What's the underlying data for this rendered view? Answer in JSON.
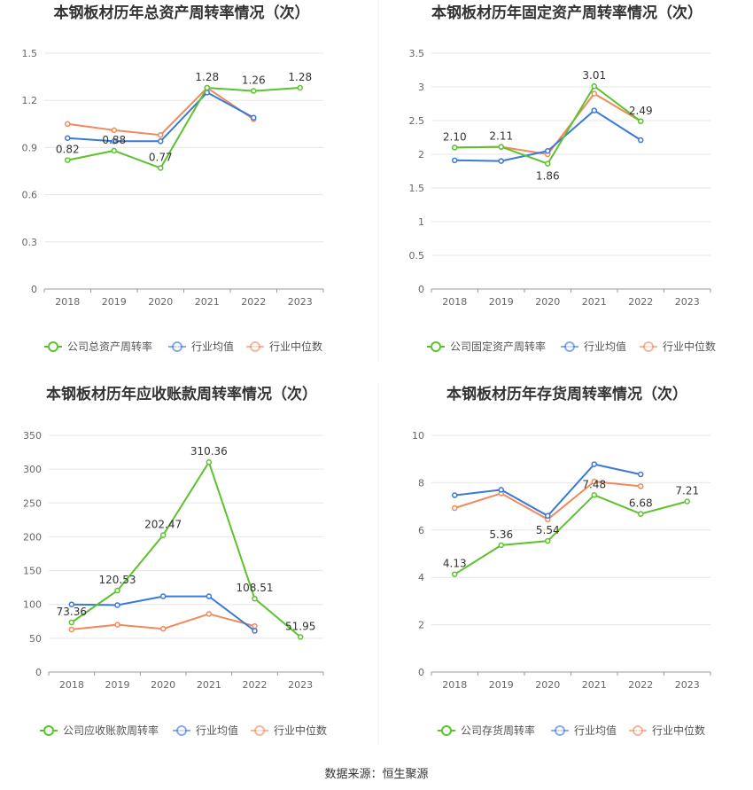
{
  "chart_data": [
    {
      "type": "line",
      "title": "本钢板材历年总资产周转率情况（次）",
      "categories": [
        "2018",
        "2019",
        "2020",
        "2021",
        "2022",
        "2023"
      ],
      "ylim": [
        0,
        1.5
      ],
      "yticks": [
        "0",
        "0.3",
        "0.6",
        "0.9",
        "1.2",
        "1.5"
      ],
      "grid": true,
      "legend_position": "bottom",
      "series": [
        {
          "name": "公司总资产周转率",
          "color": "#5cc22e",
          "values": [
            0.82,
            0.88,
            0.77,
            1.28,
            1.26,
            1.28
          ],
          "labels": [
            "0.82",
            "0.88",
            "0.77",
            "1.28",
            "1.26",
            "1.28"
          ]
        },
        {
          "name": "行业均值",
          "color": "#3b78d8",
          "values": [
            0.96,
            0.94,
            0.94,
            1.25,
            1.09,
            null
          ]
        },
        {
          "name": "行业中位数",
          "color": "#f08a5d",
          "values": [
            1.05,
            1.01,
            0.98,
            1.28,
            1.08,
            null
          ]
        }
      ]
    },
    {
      "type": "line",
      "title": "本钢板材历年固定资产周转率情况（次）",
      "categories": [
        "2018",
        "2019",
        "2020",
        "2021",
        "2022",
        "2023"
      ],
      "ylim": [
        0,
        3.5
      ],
      "yticks": [
        "0",
        "0.5",
        "1",
        "1.5",
        "2",
        "2.5",
        "3",
        "3.5"
      ],
      "grid": true,
      "legend_position": "bottom",
      "series": [
        {
          "name": "公司固定资产周转率",
          "color": "#5cc22e",
          "values": [
            2.1,
            2.11,
            1.86,
            3.01,
            2.49,
            null
          ],
          "labels": [
            "2.10",
            "2.11",
            "1.86",
            "3.01",
            "2.49",
            ""
          ]
        },
        {
          "name": "行业均值",
          "color": "#3b78d8",
          "values": [
            1.91,
            1.9,
            2.05,
            2.65,
            2.21,
            null
          ]
        },
        {
          "name": "行业中位数",
          "color": "#f08a5d",
          "values": [
            2.1,
            2.11,
            2.0,
            2.9,
            2.49,
            null
          ]
        }
      ]
    },
    {
      "type": "line",
      "title": "本钢板材历年应收账款周转率情况（次）",
      "categories": [
        "2018",
        "2019",
        "2020",
        "2021",
        "2022",
        "2023"
      ],
      "ylim": [
        0,
        350
      ],
      "yticks": [
        "0",
        "50",
        "100",
        "150",
        "200",
        "250",
        "300",
        "350"
      ],
      "grid": true,
      "legend_position": "bottom",
      "series": [
        {
          "name": "公司应收账款周转率",
          "color": "#5cc22e",
          "values": [
            73.36,
            120.53,
            202.47,
            310.36,
            108.51,
            51.95
          ],
          "labels": [
            "73.36",
            "120.53",
            "202.47",
            "310.36",
            "108.51",
            "51.95"
          ]
        },
        {
          "name": "行业均值",
          "color": "#3b78d8",
          "values": [
            100,
            99,
            112,
            112,
            61,
            null
          ]
        },
        {
          "name": "行业中位数",
          "color": "#f08a5d",
          "values": [
            63,
            70,
            64,
            86,
            68,
            null
          ]
        }
      ]
    },
    {
      "type": "line",
      "title": "本钢板材历年存货周转率情况（次）",
      "categories": [
        "2018",
        "2019",
        "2020",
        "2021",
        "2022",
        "2023"
      ],
      "ylim": [
        0,
        10
      ],
      "yticks": [
        "0",
        "2",
        "4",
        "6",
        "8",
        "10"
      ],
      "grid": true,
      "legend_position": "bottom",
      "series": [
        {
          "name": "公司存货周转率",
          "color": "#5cc22e",
          "values": [
            4.13,
            5.36,
            5.54,
            7.48,
            6.68,
            7.21
          ],
          "labels": [
            "4.13",
            "5.36",
            "5.54",
            "7.48",
            "6.68",
            "7.21"
          ]
        },
        {
          "name": "行业均值",
          "color": "#3b78d8",
          "values": [
            7.47,
            7.7,
            6.6,
            8.78,
            8.35,
            null
          ]
        },
        {
          "name": "行业中位数",
          "color": "#f08a5d",
          "values": [
            6.93,
            7.55,
            6.45,
            8.05,
            7.85,
            null
          ]
        }
      ]
    }
  ],
  "footer": {
    "source": "数据来源：恒生聚源"
  }
}
